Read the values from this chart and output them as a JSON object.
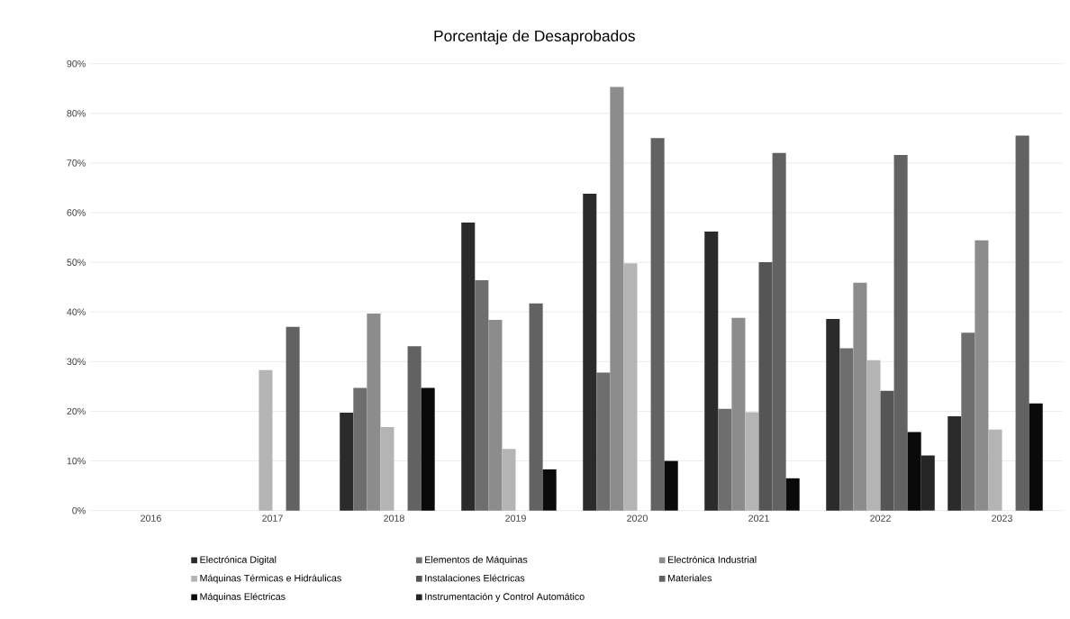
{
  "chart_data": {
    "type": "bar",
    "title": "Porcentaje de Desaprobados",
    "categories": [
      "2016",
      "2017",
      "2018",
      "2019",
      "2020",
      "2021",
      "2022",
      "2023"
    ],
    "series": [
      {
        "name": "Electrónica Digital",
        "color": "#2b2b2b",
        "values": [
          null,
          null,
          19.7,
          58.0,
          63.8,
          56.2,
          38.6,
          19.0
        ]
      },
      {
        "name": "Elementos de Máquinas",
        "color": "#6e6e6e",
        "values": [
          null,
          null,
          24.7,
          46.4,
          27.8,
          20.5,
          32.7,
          35.8
        ]
      },
      {
        "name": "Electrónica Industrial",
        "color": "#8c8c8c",
        "values": [
          null,
          null,
          39.7,
          38.4,
          85.3,
          38.8,
          45.9,
          54.4
        ]
      },
      {
        "name": "Máquinas Térmicas e Hidráulicas",
        "color": "#b4b4b4",
        "values": [
          null,
          28.3,
          16.8,
          12.4,
          49.8,
          19.8,
          30.3,
          16.3
        ]
      },
      {
        "name": "Instalaciones Eléctricas",
        "color": "#555555",
        "values": [
          null,
          null,
          null,
          null,
          null,
          50.0,
          24.1,
          null
        ]
      },
      {
        "name": "Materiales",
        "color": "#626262",
        "values": [
          null,
          37.0,
          33.1,
          41.7,
          75.0,
          72.0,
          71.6,
          75.5
        ]
      },
      {
        "name": "Máquinas Eléctricas",
        "color": "#0a0a0a",
        "values": [
          null,
          null,
          24.7,
          8.3,
          10.0,
          6.5,
          15.8,
          21.6
        ]
      },
      {
        "name": "Instrumentación y Control Automático",
        "color": "#262626",
        "values": [
          null,
          null,
          null,
          null,
          null,
          null,
          11.1,
          null
        ]
      }
    ],
    "ylim": [
      0,
      90
    ],
    "yticks": [
      {
        "value": 0,
        "label": "0%"
      },
      {
        "value": 10,
        "label": "10%"
      },
      {
        "value": 20,
        "label": "20%"
      },
      {
        "value": 30,
        "label": "30%"
      },
      {
        "value": 40,
        "label": "40%"
      },
      {
        "value": 50,
        "label": "50%"
      },
      {
        "value": 60,
        "label": "60%"
      },
      {
        "value": 70,
        "label": "70%"
      },
      {
        "value": 80,
        "label": "80%"
      },
      {
        "value": 90,
        "label": "90%"
      }
    ],
    "grid": "y",
    "legend": "bottom"
  }
}
